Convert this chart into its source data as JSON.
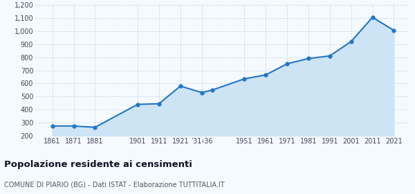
{
  "years": [
    1861,
    1871,
    1881,
    1901,
    1911,
    1921,
    1931,
    1936,
    1951,
    1961,
    1971,
    1981,
    1991,
    2001,
    2011,
    2021
  ],
  "population": [
    275,
    275,
    265,
    440,
    445,
    580,
    530,
    550,
    635,
    665,
    750,
    790,
    810,
    920,
    1105,
    1005
  ],
  "x_tick_positions": [
    1861,
    1871,
    1881,
    1901,
    1911,
    1921,
    1931,
    1951,
    1961,
    1971,
    1981,
    1991,
    2001,
    2011,
    2021
  ],
  "x_tick_labels": [
    "1861",
    "1871",
    "1881",
    "1901",
    "1911",
    "1921",
    "’31‹36",
    "1951",
    "1961",
    "1971",
    "1981",
    "1991",
    "2001",
    "2011",
    "2021"
  ],
  "line_color": "#2176c7",
  "fill_color": "#cde4f5",
  "marker_color": "#2176c7",
  "background_color": "#f5faff",
  "grid_color": "#c8dcea",
  "title": "Popolazione residente ai censimenti",
  "subtitle": "COMUNE DI PIARIO (BG) - Dati ISTAT - Elaborazione TUTTITALIA.IT",
  "ylim": [
    200,
    1200
  ],
  "yticks": [
    200,
    300,
    400,
    500,
    600,
    700,
    800,
    900,
    1000,
    1100,
    1200
  ],
  "xlim_left": 1853,
  "xlim_right": 2028
}
